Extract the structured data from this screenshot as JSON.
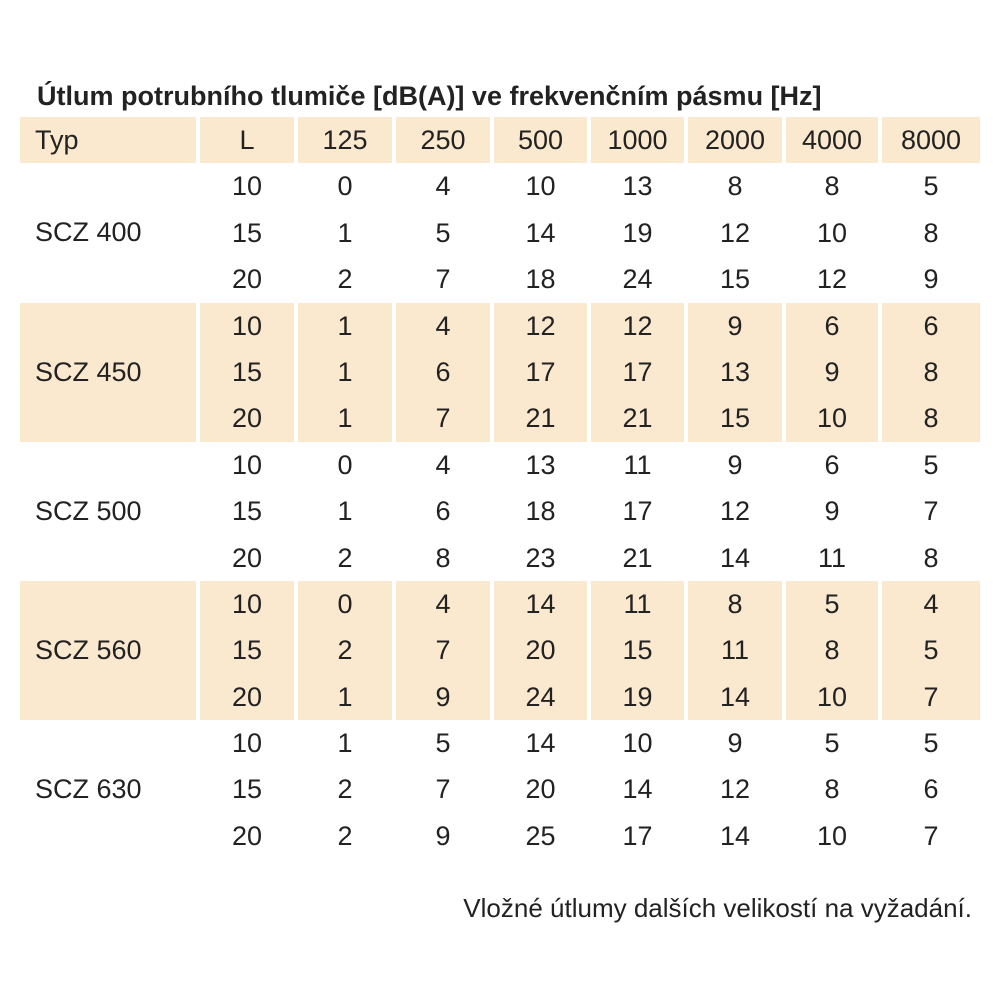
{
  "title": "Útlum potrubního tlumiče [dB(A)] ve frekvenčním pásmu [Hz]",
  "columns": [
    "Typ",
    "L",
    "125",
    "250",
    "500",
    "1000",
    "2000",
    "4000",
    "8000"
  ],
  "colors": {
    "shade": "#fbe9cf",
    "text": "#222222"
  },
  "groups": [
    {
      "type": "SCZ 400",
      "shaded": false,
      "rows": [
        [
          "10",
          "0",
          "4",
          "10",
          "13",
          "8",
          "8",
          "5"
        ],
        [
          "15",
          "1",
          "5",
          "14",
          "19",
          "12",
          "10",
          "8"
        ],
        [
          "20",
          "2",
          "7",
          "18",
          "24",
          "15",
          "12",
          "9"
        ]
      ]
    },
    {
      "type": "SCZ 450",
      "shaded": true,
      "rows": [
        [
          "10",
          "1",
          "4",
          "12",
          "12",
          "9",
          "6",
          "6"
        ],
        [
          "15",
          "1",
          "6",
          "17",
          "17",
          "13",
          "9",
          "8"
        ],
        [
          "20",
          "1",
          "7",
          "21",
          "21",
          "15",
          "10",
          "8"
        ]
      ]
    },
    {
      "type": "SCZ 500",
      "shaded": false,
      "rows": [
        [
          "10",
          "0",
          "4",
          "13",
          "11",
          "9",
          "6",
          "5"
        ],
        [
          "15",
          "1",
          "6",
          "18",
          "17",
          "12",
          "9",
          "7"
        ],
        [
          "20",
          "2",
          "8",
          "23",
          "21",
          "14",
          "11",
          "8"
        ]
      ]
    },
    {
      "type": "SCZ 560",
      "shaded": true,
      "rows": [
        [
          "10",
          "0",
          "4",
          "14",
          "11",
          "8",
          "5",
          "4"
        ],
        [
          "15",
          "2",
          "7",
          "20",
          "15",
          "11",
          "8",
          "5"
        ],
        [
          "20",
          "1",
          "9",
          "24",
          "19",
          "14",
          "10",
          "7"
        ]
      ]
    },
    {
      "type": "SCZ 630",
      "shaded": false,
      "rows": [
        [
          "10",
          "1",
          "5",
          "14",
          "10",
          "9",
          "5",
          "5"
        ],
        [
          "15",
          "2",
          "7",
          "20",
          "14",
          "12",
          "8",
          "6"
        ],
        [
          "20",
          "2",
          "9",
          "25",
          "17",
          "14",
          "10",
          "7"
        ]
      ]
    }
  ],
  "note": "Vložné útlumy dalších velikostí na vyžadání."
}
